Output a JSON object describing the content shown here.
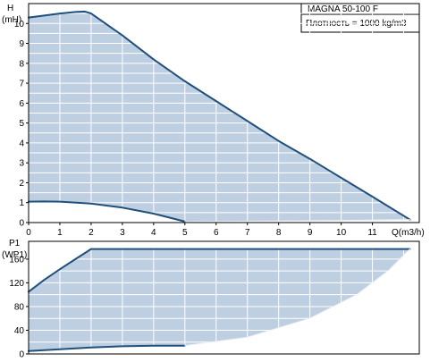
{
  "header": {
    "model": "MAGNA 50-100 F",
    "density": "Плотность = 1000 kg/m3"
  },
  "colors": {
    "fill": "#bfcfe2",
    "curve": "#1f4f7c",
    "grid": "#ffffff",
    "frame": "#000000",
    "fill_light_edge": "#eef3f8"
  },
  "chart_data": [
    {
      "type": "line",
      "xlabel": "Q(m3/h)",
      "ylabel_line1": "H",
      "ylabel_line2": "(mH)",
      "xlim": [
        0,
        12.5
      ],
      "ylim": [
        0,
        11
      ],
      "x_ticks": [
        0,
        1,
        2,
        3,
        4,
        5,
        6,
        7,
        8,
        9,
        10,
        11
      ],
      "y_ticks": [
        0,
        1,
        2,
        3,
        4,
        5,
        6,
        7,
        8,
        9,
        10
      ],
      "grid": true,
      "series": [
        {
          "role": "max-curve",
          "x": [
            0,
            0.5,
            1.0,
            1.5,
            1.8,
            2.0,
            3.0,
            4.0,
            5.0,
            6.0,
            7.0,
            8.0,
            9.0,
            10.0,
            11.0,
            12.2
          ],
          "values": [
            10.3,
            10.4,
            10.5,
            10.58,
            10.6,
            10.5,
            9.4,
            8.2,
            7.1,
            6.1,
            5.1,
            4.1,
            3.2,
            2.25,
            1.3,
            0.15
          ]
        },
        {
          "role": "min-curve",
          "x": [
            0,
            0.5,
            1.0,
            2.0,
            3.0,
            4.0,
            4.5,
            5.0
          ],
          "values": [
            1.05,
            1.06,
            1.05,
            0.95,
            0.75,
            0.45,
            0.25,
            0.05
          ]
        },
        {
          "role": "min-curve-end",
          "x": [
            5.0,
            8.0,
            11.0,
            12.2
          ],
          "values": [
            0.05,
            0.08,
            0.12,
            0.15
          ]
        }
      ]
    },
    {
      "type": "line",
      "xlabel": "",
      "ylabel_line1": "P1",
      "ylabel_line2": "(WP1)",
      "xlim": [
        0,
        12.5
      ],
      "ylim": [
        0,
        190
      ],
      "y_ticks": [
        0,
        40,
        80,
        120,
        160
      ],
      "grid": true,
      "series": [
        {
          "role": "max-power",
          "x": [
            0,
            0.5,
            1.0,
            1.5,
            2.0,
            4.0,
            6.0,
            8.0,
            10.0,
            12.2
          ],
          "values": [
            105,
            125,
            143,
            160,
            177,
            177,
            177,
            177,
            177,
            177
          ]
        },
        {
          "role": "min-power",
          "x": [
            0,
            1.0,
            2.0,
            3.0,
            4.0,
            5.0
          ],
          "values": [
            5,
            8,
            11,
            13,
            14,
            14
          ]
        },
        {
          "role": "min-power-end",
          "x": [
            5.0,
            7.0,
            9.0,
            10.5,
            11.5,
            12.2
          ],
          "values": [
            14,
            28,
            60,
            100,
            140,
            177
          ]
        }
      ]
    }
  ]
}
